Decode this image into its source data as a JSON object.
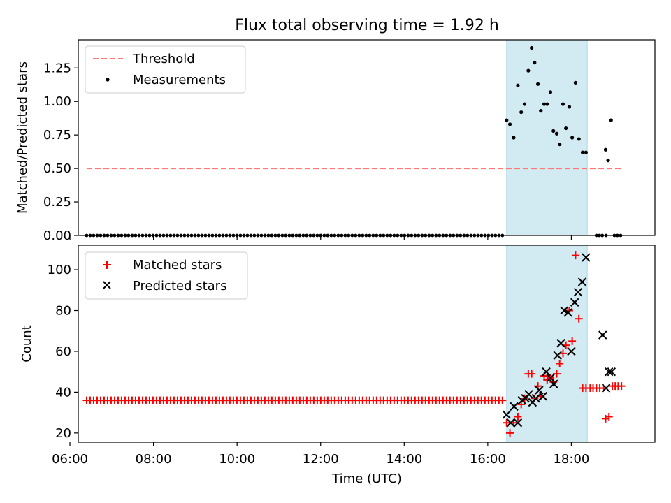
{
  "figure_title": "Flux total observing time = 1.92 h",
  "colors": {
    "threshold": "#ff7777",
    "matched": "#ff0000",
    "predicted": "#000000",
    "measurement": "#000000",
    "shade": "#add8e6"
  },
  "chart_data": [
    {
      "type": "scatter",
      "ylabel": "Matched/Predicted stars",
      "xlabel": "",
      "xlim": [
        6.2,
        20.0
      ],
      "ylim": [
        0,
        1.46
      ],
      "yticks": [
        0,
        0.25,
        0.5,
        0.75,
        1.0,
        1.25
      ],
      "ytick_labels": [
        "0.00",
        "0.25",
        "0.50",
        "0.75",
        "1.00",
        "1.25"
      ],
      "xticks": [
        6,
        8,
        10,
        12,
        14,
        16,
        18
      ],
      "shaded_span": [
        16.45,
        18.38
      ],
      "legend": {
        "position": "upper-left",
        "entries": [
          "Threshold",
          "Measurements"
        ]
      },
      "threshold": {
        "name": "Threshold",
        "y": 0.5,
        "x_range": [
          6.4,
          19.2
        ]
      },
      "zero_measurements": {
        "x_start": 6.4,
        "x_end": 16.35,
        "count": 120,
        "y": 0,
        "extra_x": [
          18.6,
          18.67,
          18.74,
          18.83,
          19.03,
          19.1,
          19.18
        ]
      },
      "measurements": {
        "name": "Measurements",
        "x": [
          16.45,
          16.53,
          16.62,
          16.72,
          16.8,
          16.88,
          16.97,
          17.05,
          17.12,
          17.2,
          17.27,
          17.35,
          17.42,
          17.5,
          17.57,
          17.65,
          17.72,
          17.8,
          17.87,
          17.95,
          18.02,
          18.1,
          18.18,
          18.27,
          18.35,
          18.82,
          18.88,
          18.95
        ],
        "y": [
          0.86,
          0.83,
          0.73,
          1.12,
          0.92,
          0.98,
          1.23,
          1.4,
          1.29,
          1.13,
          0.93,
          0.98,
          0.98,
          1.07,
          0.78,
          0.76,
          0.68,
          0.98,
          0.8,
          0.96,
          0.73,
          1.14,
          0.72,
          0.62,
          0.62,
          0.64,
          0.56,
          0.86
        ]
      }
    },
    {
      "type": "scatter",
      "ylabel": "Count",
      "xlabel": "Time (UTC)",
      "xlim": [
        6.2,
        20.0
      ],
      "ylim": [
        15.5,
        112
      ],
      "yticks": [
        20,
        40,
        60,
        80,
        100
      ],
      "ytick_labels": [
        "20",
        "40",
        "60",
        "80",
        "100"
      ],
      "xticks": [
        6,
        8,
        10,
        12,
        14,
        16,
        18
      ],
      "xtick_labels": [
        "06:00",
        "08:00",
        "10:00",
        "12:00",
        "14:00",
        "16:00",
        "18:00"
      ],
      "shaded_span": [
        16.45,
        18.38
      ],
      "legend": {
        "position": "upper-left",
        "entries": [
          "Matched stars",
          "Predicted stars"
        ]
      },
      "matched_baseline": {
        "x_start": 6.4,
        "x_end": 16.35,
        "count": 120,
        "y": 36
      },
      "matched": {
        "name": "Matched stars",
        "x": [
          16.45,
          16.53,
          16.62,
          16.72,
          16.8,
          16.88,
          16.97,
          17.05,
          17.12,
          17.2,
          17.27,
          17.35,
          17.42,
          17.5,
          17.57,
          17.65,
          17.72,
          17.8,
          17.87,
          17.95,
          18.02,
          18.1,
          18.18,
          18.27,
          18.35,
          18.45,
          18.52,
          18.6,
          18.68,
          18.76,
          18.82,
          18.9,
          18.98,
          19.05,
          19.12,
          19.2
        ],
        "y": [
          25,
          20,
          25,
          28,
          34,
          37,
          49,
          49,
          37,
          43,
          38,
          48,
          46,
          47,
          45,
          49,
          54,
          59,
          63,
          80,
          65,
          107,
          76,
          42,
          42,
          42,
          42,
          42,
          42,
          42,
          27,
          28,
          43,
          43,
          43,
          43
        ]
      },
      "predicted": {
        "name": "Predicted stars",
        "x": [
          16.45,
          16.55,
          16.63,
          16.72,
          16.82,
          16.9,
          16.98,
          17.07,
          17.15,
          17.23,
          17.32,
          17.4,
          17.5,
          17.58,
          17.67,
          17.75,
          17.83,
          17.92,
          18.0,
          18.08,
          18.16,
          18.26,
          18.35,
          18.75,
          18.83,
          18.9,
          18.96
        ],
        "y": [
          29,
          25,
          33,
          25,
          36,
          37,
          39,
          35,
          37,
          41,
          38,
          50,
          47,
          44,
          58,
          64,
          80,
          79,
          60,
          84,
          89,
          94,
          106,
          68,
          42,
          50,
          50
        ]
      }
    }
  ]
}
